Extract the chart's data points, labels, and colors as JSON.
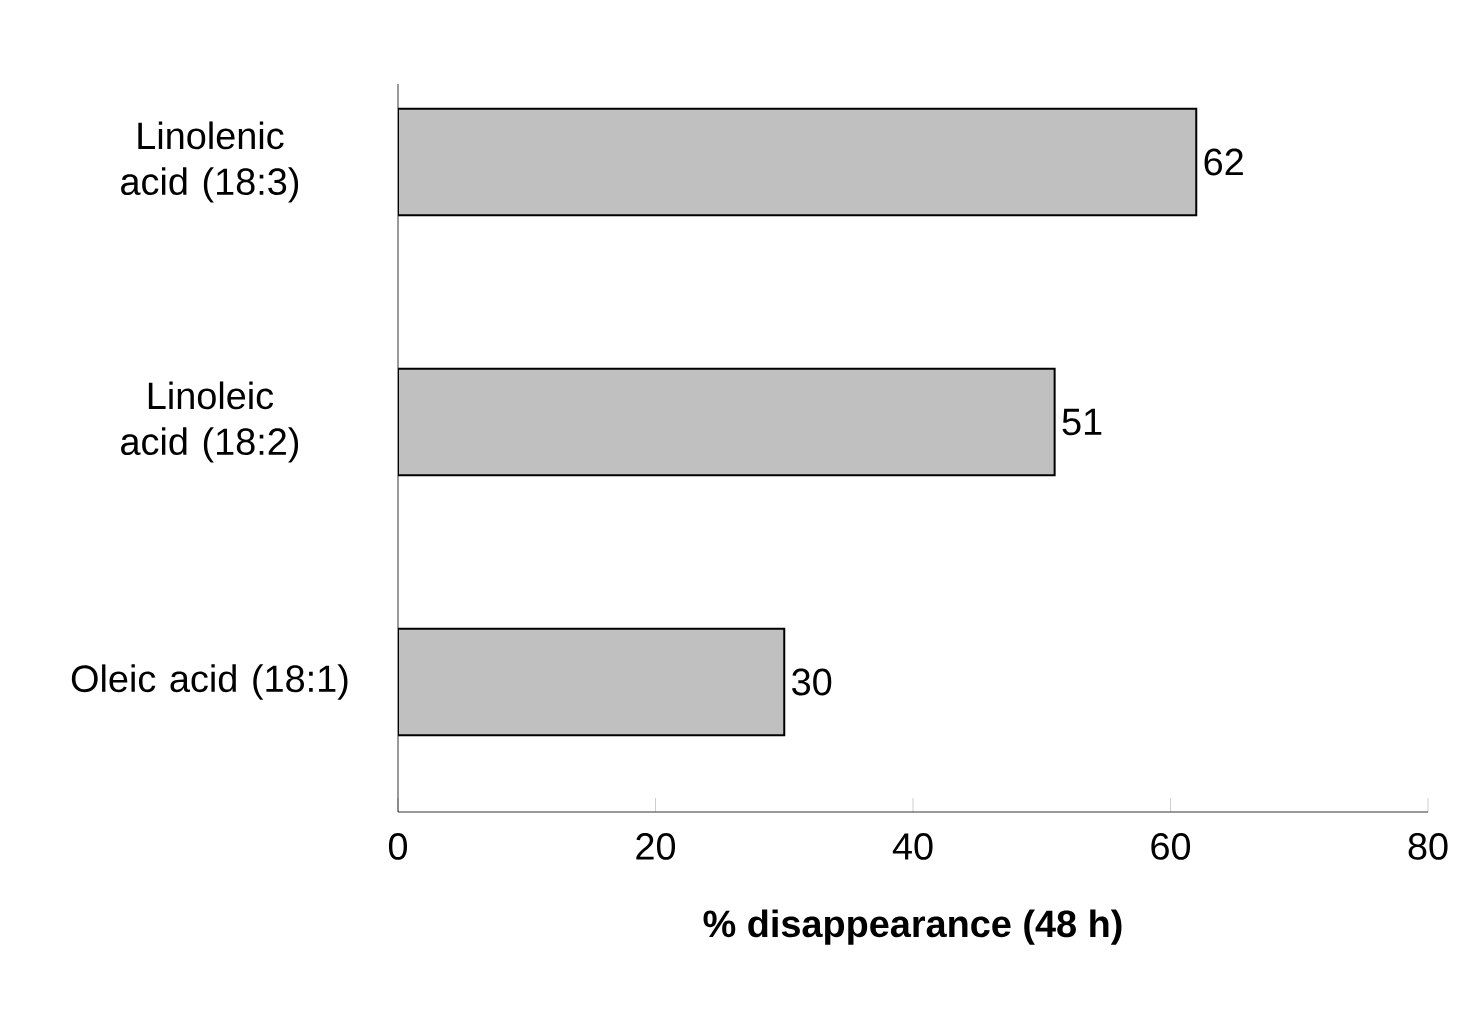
{
  "chart_data": {
    "type": "bar",
    "orientation": "horizontal",
    "xlabel": "% disappearance (48 h)",
    "categories": [
      "Linolenic acid (18:3)",
      "Linoleic acid (18:2)",
      "Oleic acid (18:1)"
    ],
    "values": [
      62,
      51,
      30
    ],
    "color": "#c0c0c0",
    "xlim": [
      0,
      80
    ],
    "xticks": [
      0,
      20,
      40,
      60,
      80
    ],
    "data_labels": true,
    "grid": false
  }
}
